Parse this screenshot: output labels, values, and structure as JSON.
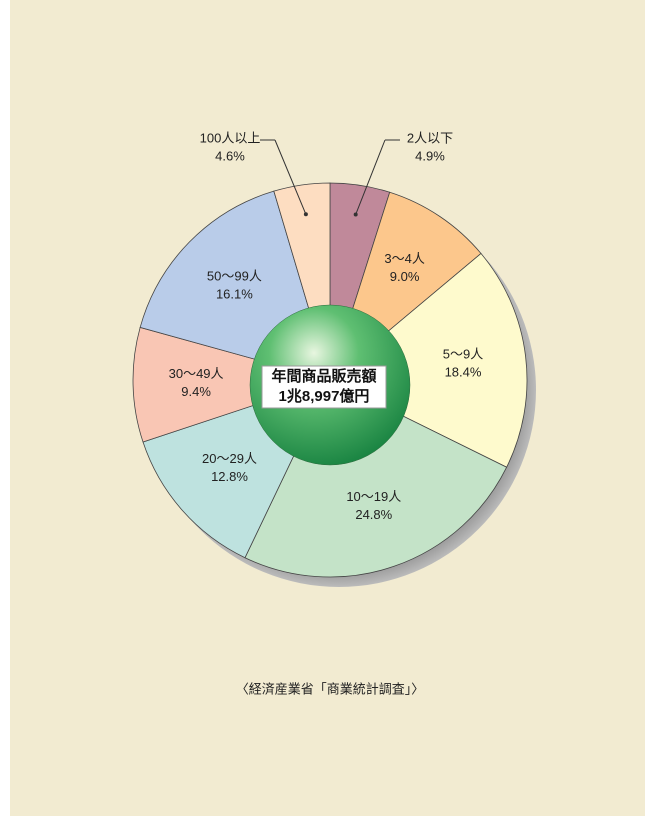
{
  "chart_data": {
    "type": "pie",
    "categories": [
      "2人以下",
      "3〜4人",
      "5〜9人",
      "10〜19人",
      "20〜29人",
      "30〜49人",
      "50〜99人",
      "100人以上"
    ],
    "values": [
      4.9,
      9.0,
      18.4,
      24.8,
      12.8,
      9.4,
      16.1,
      4.6
    ],
    "value_labels": [
      "4.9%",
      "9.0%",
      "18.4%",
      "24.8%",
      "12.8%",
      "9.4%",
      "16.1%",
      "4.6%"
    ],
    "colors": [
      "#c0899a",
      "#fcc78c",
      "#fefacd",
      "#c4e3c8",
      "#bee2df",
      "#f9c6b4",
      "#b9cce9",
      "#fdddc1"
    ],
    "center_text": [
      "年間商品販売額",
      "1兆8,997億円"
    ],
    "source": "〈経済産業省「商業統計調査」〉"
  }
}
